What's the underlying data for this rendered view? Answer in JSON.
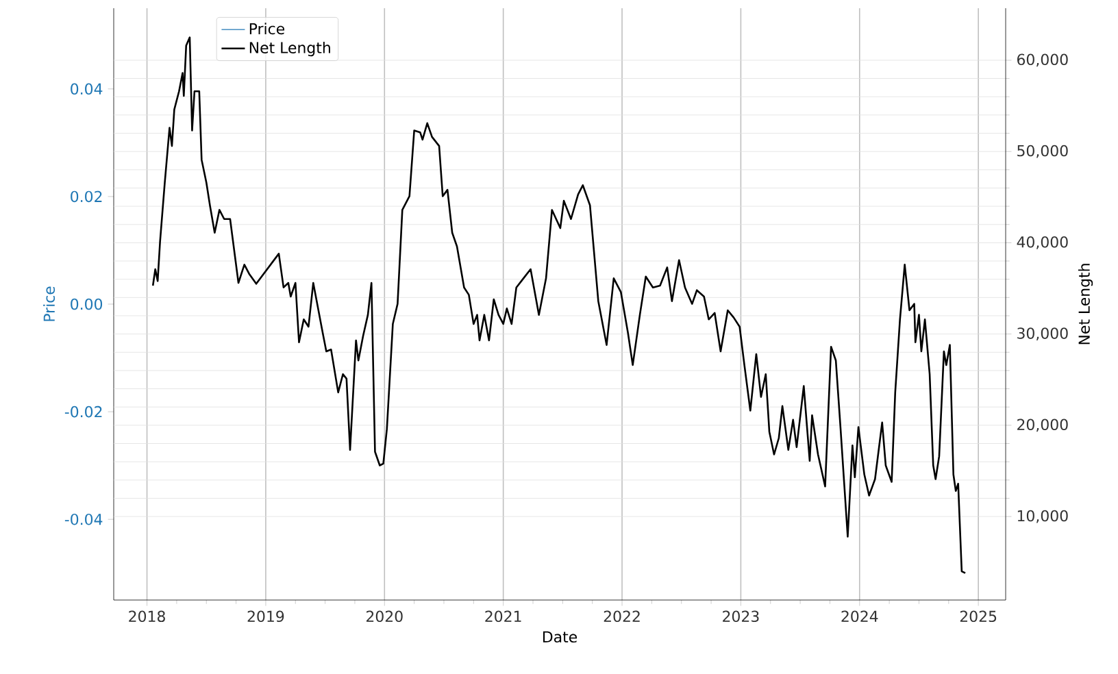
{
  "chart_data": {
    "type": "line",
    "xlabel": "Date",
    "ylabel": "Price",
    "y2label": "Net Length",
    "xlim": [
      2017.72,
      2025.23
    ],
    "xticks": [
      2018,
      2019,
      2020,
      2021,
      2022,
      2023,
      2024,
      2025
    ],
    "ylim": [
      -0.055,
      0.055
    ],
    "yticks": [
      {
        "value": -0.04,
        "label": "-0.04"
      },
      {
        "value": -0.02,
        "label": "-0.02"
      },
      {
        "value": 0,
        "label": "0.00"
      },
      {
        "value": 0.02,
        "label": "0.02"
      },
      {
        "value": 0.04,
        "label": "0.04"
      }
    ],
    "y2lim": [
      850,
      65700
    ],
    "y2ticks": [
      {
        "value": 10000,
        "label": "10,000"
      },
      {
        "value": 20000,
        "label": "20,000"
      },
      {
        "value": 30000,
        "label": "30,000"
      },
      {
        "value": 40000,
        "label": "40,000"
      },
      {
        "value": 50000,
        "label": "50,000"
      },
      {
        "value": 60000,
        "label": "60,000"
      }
    ],
    "grid": true,
    "legend": "top left",
    "series": [
      {
        "name": "Price",
        "color": "#1f77b4",
        "axis": "y"
      },
      {
        "name": "Net Length",
        "color": "#000000",
        "axis": "y2",
        "x": [
          2018.05,
          2018.07,
          2018.09,
          2018.11,
          2018.15,
          2018.19,
          2018.21,
          2018.23,
          2018.27,
          2018.3,
          2018.31,
          2018.33,
          2018.36,
          2018.38,
          2018.4,
          2018.44,
          2018.46,
          2018.5,
          2018.53,
          2018.57,
          2018.61,
          2018.65,
          2018.7,
          2018.73,
          2018.77,
          2018.82,
          2018.86,
          2018.92,
          2019.11,
          2019.15,
          2019.19,
          2019.21,
          2019.25,
          2019.28,
          2019.32,
          2019.36,
          2019.4,
          2019.48,
          2019.51,
          2019.55,
          2019.61,
          2019.65,
          2019.68,
          2019.71,
          2019.76,
          2019.78,
          2019.82,
          2019.86,
          2019.89,
          2019.92,
          2019.96,
          2019.99,
          2020.02,
          2020.07,
          2020.11,
          2020.15,
          2020.21,
          2020.25,
          2020.3,
          2020.32,
          2020.36,
          2020.4,
          2020.46,
          2020.49,
          2020.53,
          2020.57,
          2020.61,
          2020.67,
          2020.71,
          2020.75,
          2020.78,
          2020.8,
          2020.84,
          2020.88,
          2020.92,
          2020.96,
          2021.0,
          2021.03,
          2021.07,
          2021.11,
          2021.17,
          2021.23,
          2021.3,
          2021.36,
          2021.41,
          2021.48,
          2021.51,
          2021.57,
          2021.63,
          2021.67,
          2021.73,
          2021.8,
          2021.87,
          2021.93,
          2021.99,
          2022.05,
          2022.09,
          2022.15,
          2022.2,
          2022.26,
          2022.32,
          2022.38,
          2022.42,
          2022.48,
          2022.53,
          2022.59,
          2022.63,
          2022.69,
          2022.73,
          2022.78,
          2022.83,
          2022.89,
          2022.94,
          2022.99,
          2023.03,
          2023.08,
          2023.13,
          2023.17,
          2023.21,
          2023.24,
          2023.28,
          2023.32,
          2023.35,
          2023.4,
          2023.44,
          2023.47,
          2023.53,
          2023.58,
          2023.6,
          2023.65,
          2023.71,
          2023.76,
          2023.8,
          2023.84,
          2023.9,
          2023.94,
          2023.96,
          2023.99,
          2024.04,
          2024.08,
          2024.13,
          2024.19,
          2024.22,
          2024.27,
          2024.3,
          2024.34,
          2024.38,
          2024.42,
          2024.46,
          2024.47,
          2024.5,
          2024.52,
          2024.55,
          2024.59,
          2024.62,
          2024.64,
          2024.67,
          2024.71,
          2024.73,
          2024.76,
          2024.79,
          2024.81,
          2024.83,
          2024.86,
          2024.89
        ],
        "values": [
          35300,
          37100,
          35800,
          40100,
          46600,
          52600,
          50600,
          54600,
          56600,
          58600,
          56100,
          61600,
          62500,
          52300,
          56600,
          56600,
          49100,
          46600,
          44100,
          41100,
          43600,
          42600,
          42600,
          39600,
          35600,
          37600,
          36600,
          35500,
          38800,
          35100,
          35600,
          34100,
          35600,
          29100,
          31600,
          30800,
          35600,
          30100,
          28100,
          28300,
          23600,
          25600,
          25100,
          17300,
          29300,
          27100,
          29800,
          32100,
          35600,
          17100,
          15600,
          15800,
          19600,
          31100,
          33300,
          43600,
          45100,
          52300,
          52100,
          51300,
          53100,
          51600,
          50600,
          45100,
          45800,
          41100,
          39600,
          35100,
          34300,
          31100,
          32100,
          29300,
          32100,
          29300,
          33800,
          32100,
          31100,
          32800,
          31100,
          35100,
          36100,
          37100,
          32100,
          36100,
          43600,
          41600,
          44600,
          42600,
          45300,
          46300,
          44100,
          33600,
          28800,
          36100,
          34600,
          30100,
          26600,
          32100,
          36300,
          35100,
          35300,
          37300,
          33600,
          38100,
          35100,
          33300,
          34800,
          34100,
          31600,
          32300,
          28100,
          32600,
          31800,
          30800,
          26600,
          21600,
          27800,
          23100,
          25600,
          19300,
          16800,
          18600,
          22100,
          17300,
          20600,
          17600,
          24300,
          16100,
          21100,
          16800,
          13300,
          28600,
          27100,
          19600,
          7800,
          17800,
          14300,
          19800,
          14600,
          12300,
          14100,
          20300,
          15600,
          13800,
          23600,
          31600,
          37600,
          32600,
          33300,
          29100,
          32100,
          28100,
          31600,
          25600,
          15600,
          14100,
          16600,
          28100,
          26600,
          28800,
          14600,
          12800,
          13600,
          4000,
          3800
        ]
      }
    ]
  }
}
